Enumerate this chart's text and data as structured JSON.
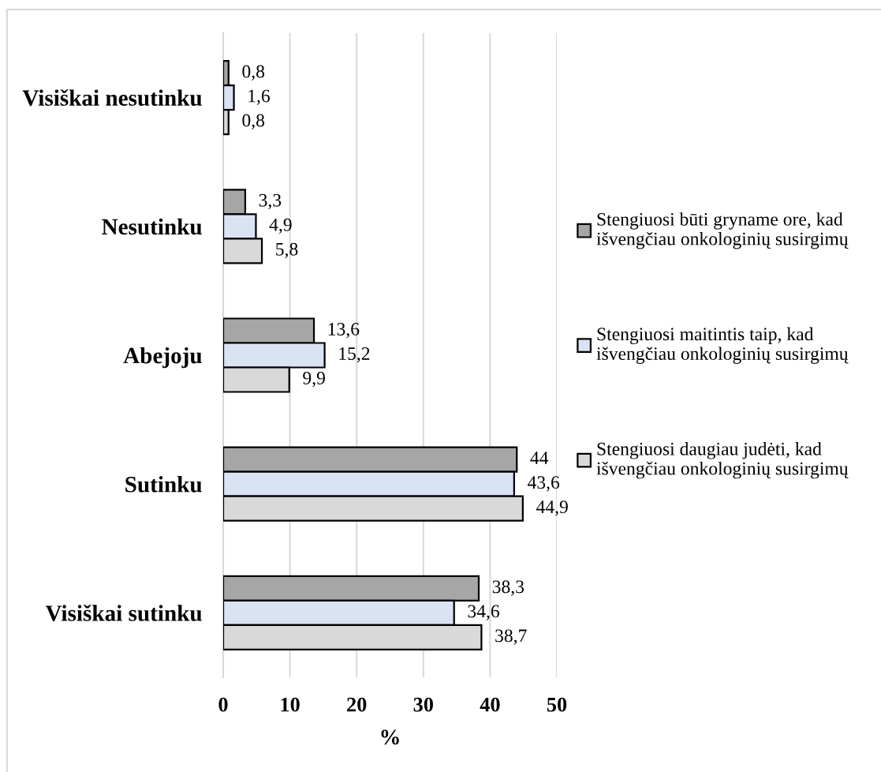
{
  "chart_data": {
    "type": "bar",
    "orientation": "horizontal",
    "categories": [
      "Visiškai nesutinku",
      "Nesutinku",
      "Abejoju",
      "Sutinku",
      "Visiškai sutinku"
    ],
    "series": [
      {
        "name": "Stengiuosi būti gryname ore, kad\nišvengčiau onkologinių susirgimų",
        "color": "#a6a6a6",
        "values": [
          0.8,
          3.3,
          13.6,
          44,
          38.3
        ],
        "value_labels": [
          "0,8",
          "3,3",
          "13,6",
          "44",
          "38,3"
        ]
      },
      {
        "name": "Stengiuosi maitintis taip, kad\nišvengčiau onkologinių susirgimų",
        "color": "#dae3f3",
        "values": [
          1.6,
          4.9,
          15.2,
          43.6,
          34.6
        ],
        "value_labels": [
          "1,6",
          "4,9",
          "15,2",
          "43,6",
          "34,6"
        ]
      },
      {
        "name": "Stengiuosi daugiau judėti, kad\nišvengčiau onkologinių susirgimų",
        "color": "#d9d9d9",
        "values": [
          0.8,
          5.8,
          9.9,
          44.9,
          38.7
        ],
        "value_labels": [
          "0,8",
          "5,8",
          "9,9",
          "44,9",
          "38,7"
        ]
      }
    ],
    "xlabel": "%",
    "xlim": [
      0,
      50
    ],
    "xticks": [
      0,
      10,
      20,
      30,
      40,
      50
    ],
    "grid": "x",
    "legend": "right"
  }
}
